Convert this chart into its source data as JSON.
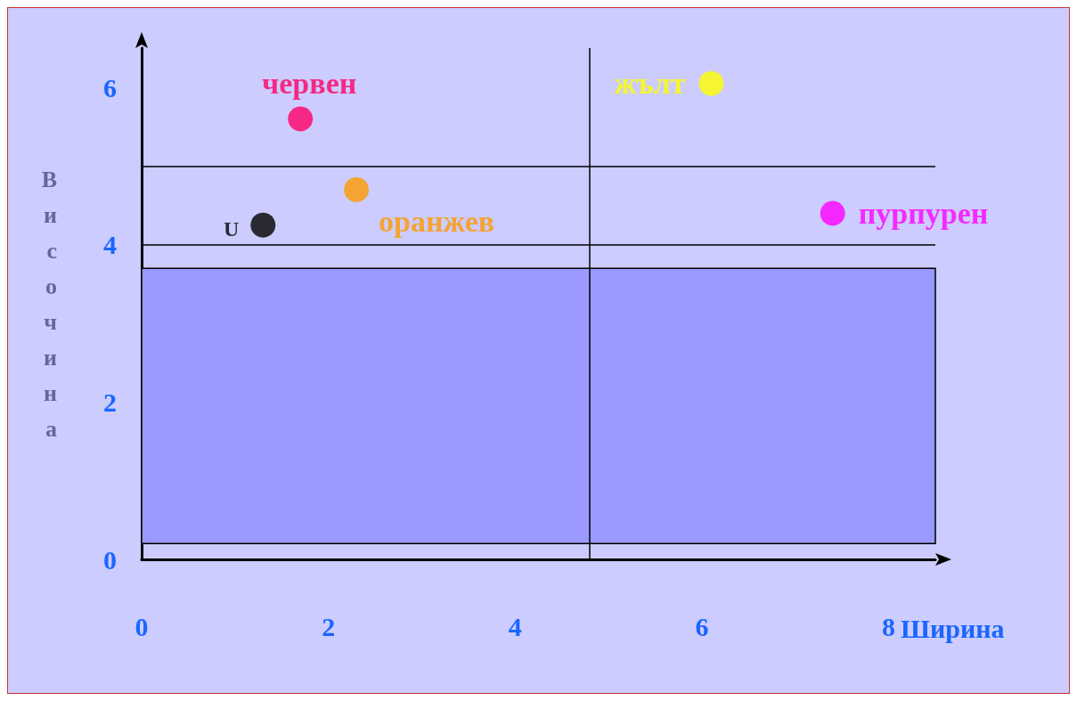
{
  "chart_data": {
    "type": "scatter",
    "xlabel": "Ширина",
    "ylabel": "Височина",
    "xlim": [
      0,
      8.5
    ],
    "xticks": [
      0,
      2,
      4,
      6,
      8
    ],
    "ylim": [
      0,
      6.5
    ],
    "yticks": [
      0,
      2,
      4,
      6
    ],
    "grid": false,
    "legend": false,
    "marker": "circle",
    "ref_lines": [
      {
        "axis": "y",
        "value": 4,
        "color": "#000000"
      },
      {
        "axis": "y",
        "value": 5,
        "color": "#000000"
      },
      {
        "axis": "x",
        "value": 4.8,
        "color": "#000000"
      }
    ],
    "bands": [
      {
        "axis": "y",
        "from": 0.2,
        "to": 3.7,
        "color": "#9999ff"
      }
    ],
    "series": [
      {
        "name": "червен",
        "color": "#ff0066",
        "x": [
          1.7
        ],
        "values": [
          5.6
        ]
      },
      {
        "name": "жълт",
        "color": "#ffff00",
        "x": [
          6.1
        ],
        "values": [
          6.05
        ]
      },
      {
        "name": "оранжев",
        "color": "#ff9900",
        "x": [
          2.3
        ],
        "values": [
          4.7
        ]
      },
      {
        "name": "пурпурен",
        "color": "#ff00ff",
        "x": [
          7.4
        ],
        "values": [
          4.4
        ]
      },
      {
        "name": "U",
        "color": "#000000",
        "x": [
          1.3
        ],
        "values": [
          4.25
        ]
      }
    ]
  }
}
